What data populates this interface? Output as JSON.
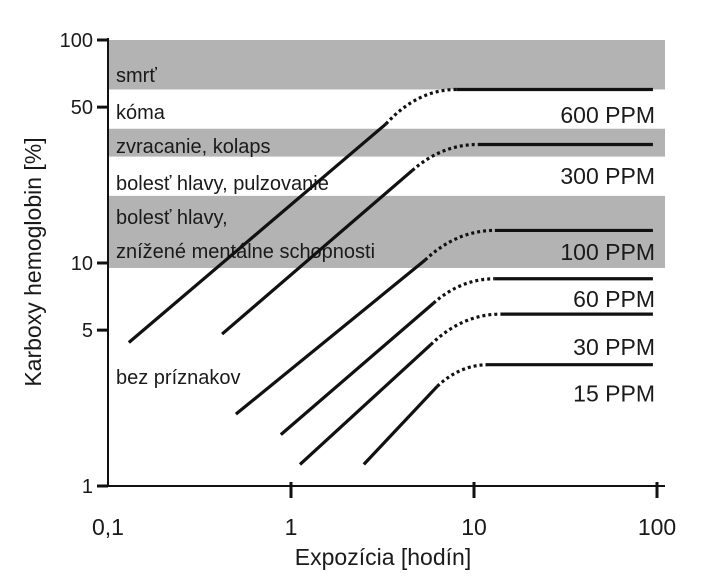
{
  "chart_data": {
    "type": "line",
    "x_scale": "log",
    "y_scale": "log",
    "xlabel": "Expozícia [hodín]",
    "ylabel": "Karboxy hemoglobin [%]",
    "xlim": [
      0.1,
      100
    ],
    "ylim": [
      1,
      100
    ],
    "x_ticks": [
      0.1,
      1,
      10,
      100
    ],
    "x_tick_labels": [
      "0,1",
      "1",
      "10",
      "100"
    ],
    "y_ticks": [
      1,
      5,
      10,
      50,
      100
    ],
    "y_tick_labels": [
      "1",
      "5",
      "10",
      "50",
      "100"
    ],
    "grid": false,
    "zones": [
      {
        "label": "smrť",
        "y_from": 60,
        "y_to": 100,
        "shaded": true
      },
      {
        "label": "kóma",
        "y_from": 40,
        "y_to": 60,
        "shaded": false
      },
      {
        "label": "zvracanie, kolaps",
        "y_from": 30,
        "y_to": 40,
        "shaded": true
      },
      {
        "label": "bolesť hlavy, pulzovanie",
        "y_from": 20,
        "y_to": 30,
        "shaded": false
      },
      {
        "label_lines": [
          "bolesť hlavy,",
          "znížené mentálne schopnosti"
        ],
        "y_from": 9.5,
        "y_to": 20,
        "shaded": true
      },
      {
        "label": "bez príznakov",
        "y_from": 1,
        "y_to": 9.5,
        "shaded": false
      }
    ],
    "series": [
      {
        "name": "600 PPM",
        "rise": [
          [
            0.13,
            4.4
          ],
          [
            3.3,
            42
          ]
        ],
        "dotted": [
          [
            3.3,
            42
          ],
          [
            8,
            60
          ]
        ],
        "plateau": [
          [
            8,
            60
          ],
          [
            95,
            60
          ]
        ]
      },
      {
        "name": "300 PPM",
        "rise": [
          [
            0.42,
            4.8
          ],
          [
            4.6,
            26
          ]
        ],
        "dotted": [
          [
            4.6,
            26
          ],
          [
            10.5,
            34
          ]
        ],
        "plateau": [
          [
            10.5,
            34
          ],
          [
            95,
            34
          ]
        ]
      },
      {
        "name": "100 PPM",
        "rise": [
          [
            0.5,
            2.1
          ],
          [
            5.4,
            10.3
          ]
        ],
        "dotted": [
          [
            5.4,
            10.3
          ],
          [
            13,
            14
          ]
        ],
        "plateau": [
          [
            13,
            14
          ],
          [
            95,
            14
          ]
        ]
      },
      {
        "name": "60 PPM",
        "rise": [
          [
            0.88,
            1.7
          ],
          [
            6,
            6.6
          ]
        ],
        "dotted": [
          [
            6,
            6.6
          ],
          [
            13,
            8.5
          ]
        ],
        "plateau": [
          [
            13,
            8.5
          ],
          [
            95,
            8.5
          ]
        ]
      },
      {
        "name": "30 PPM",
        "rise": [
          [
            1.12,
            1.25
          ],
          [
            5.8,
            4.3
          ]
        ],
        "dotted": [
          [
            5.8,
            4.3
          ],
          [
            14,
            5.9
          ]
        ],
        "plateau": [
          [
            14,
            5.9
          ],
          [
            95,
            5.9
          ]
        ]
      },
      {
        "name": "15 PPM",
        "rise": [
          [
            2.5,
            1.25
          ],
          [
            6.3,
            2.8
          ]
        ],
        "dotted": [
          [
            6.3,
            2.8
          ],
          [
            12,
            3.5
          ]
        ],
        "plateau": [
          [
            12,
            3.5
          ],
          [
            95,
            3.5
          ]
        ]
      }
    ],
    "series_labels_y": [
      {
        "name": "600 PPM",
        "y": 46
      },
      {
        "name": "300 PPM",
        "y": 24.5
      },
      {
        "name": "100 PPM",
        "y": 11.2
      },
      {
        "name": "60 PPM",
        "y": 6.9
      },
      {
        "name": "30 PPM",
        "y": 4.2
      },
      {
        "name": "15 PPM",
        "y": 2.6
      }
    ]
  }
}
